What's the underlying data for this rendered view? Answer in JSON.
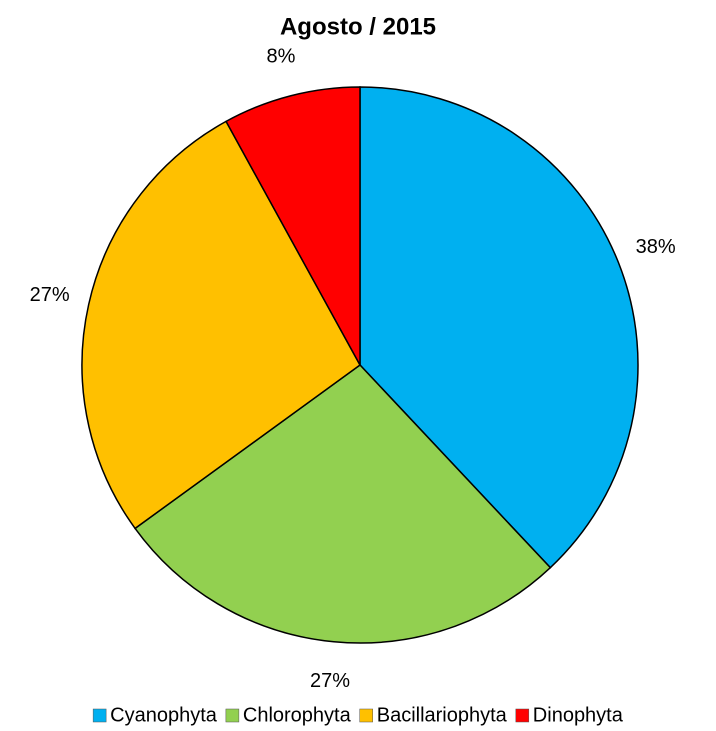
{
  "chart_data": {
    "type": "pie",
    "title": "Agosto / 2015",
    "categories": [
      "Cyanophyta",
      "Chlorophyta",
      "Bacillariophyta",
      "Dinophyta"
    ],
    "values": [
      38,
      27,
      27,
      8
    ],
    "value_labels": [
      "38%",
      "27%",
      "27%",
      "8%"
    ],
    "colors": [
      "#00B0F0",
      "#92D050",
      "#FFC000",
      "#FF0000"
    ],
    "legend": "bottom"
  }
}
